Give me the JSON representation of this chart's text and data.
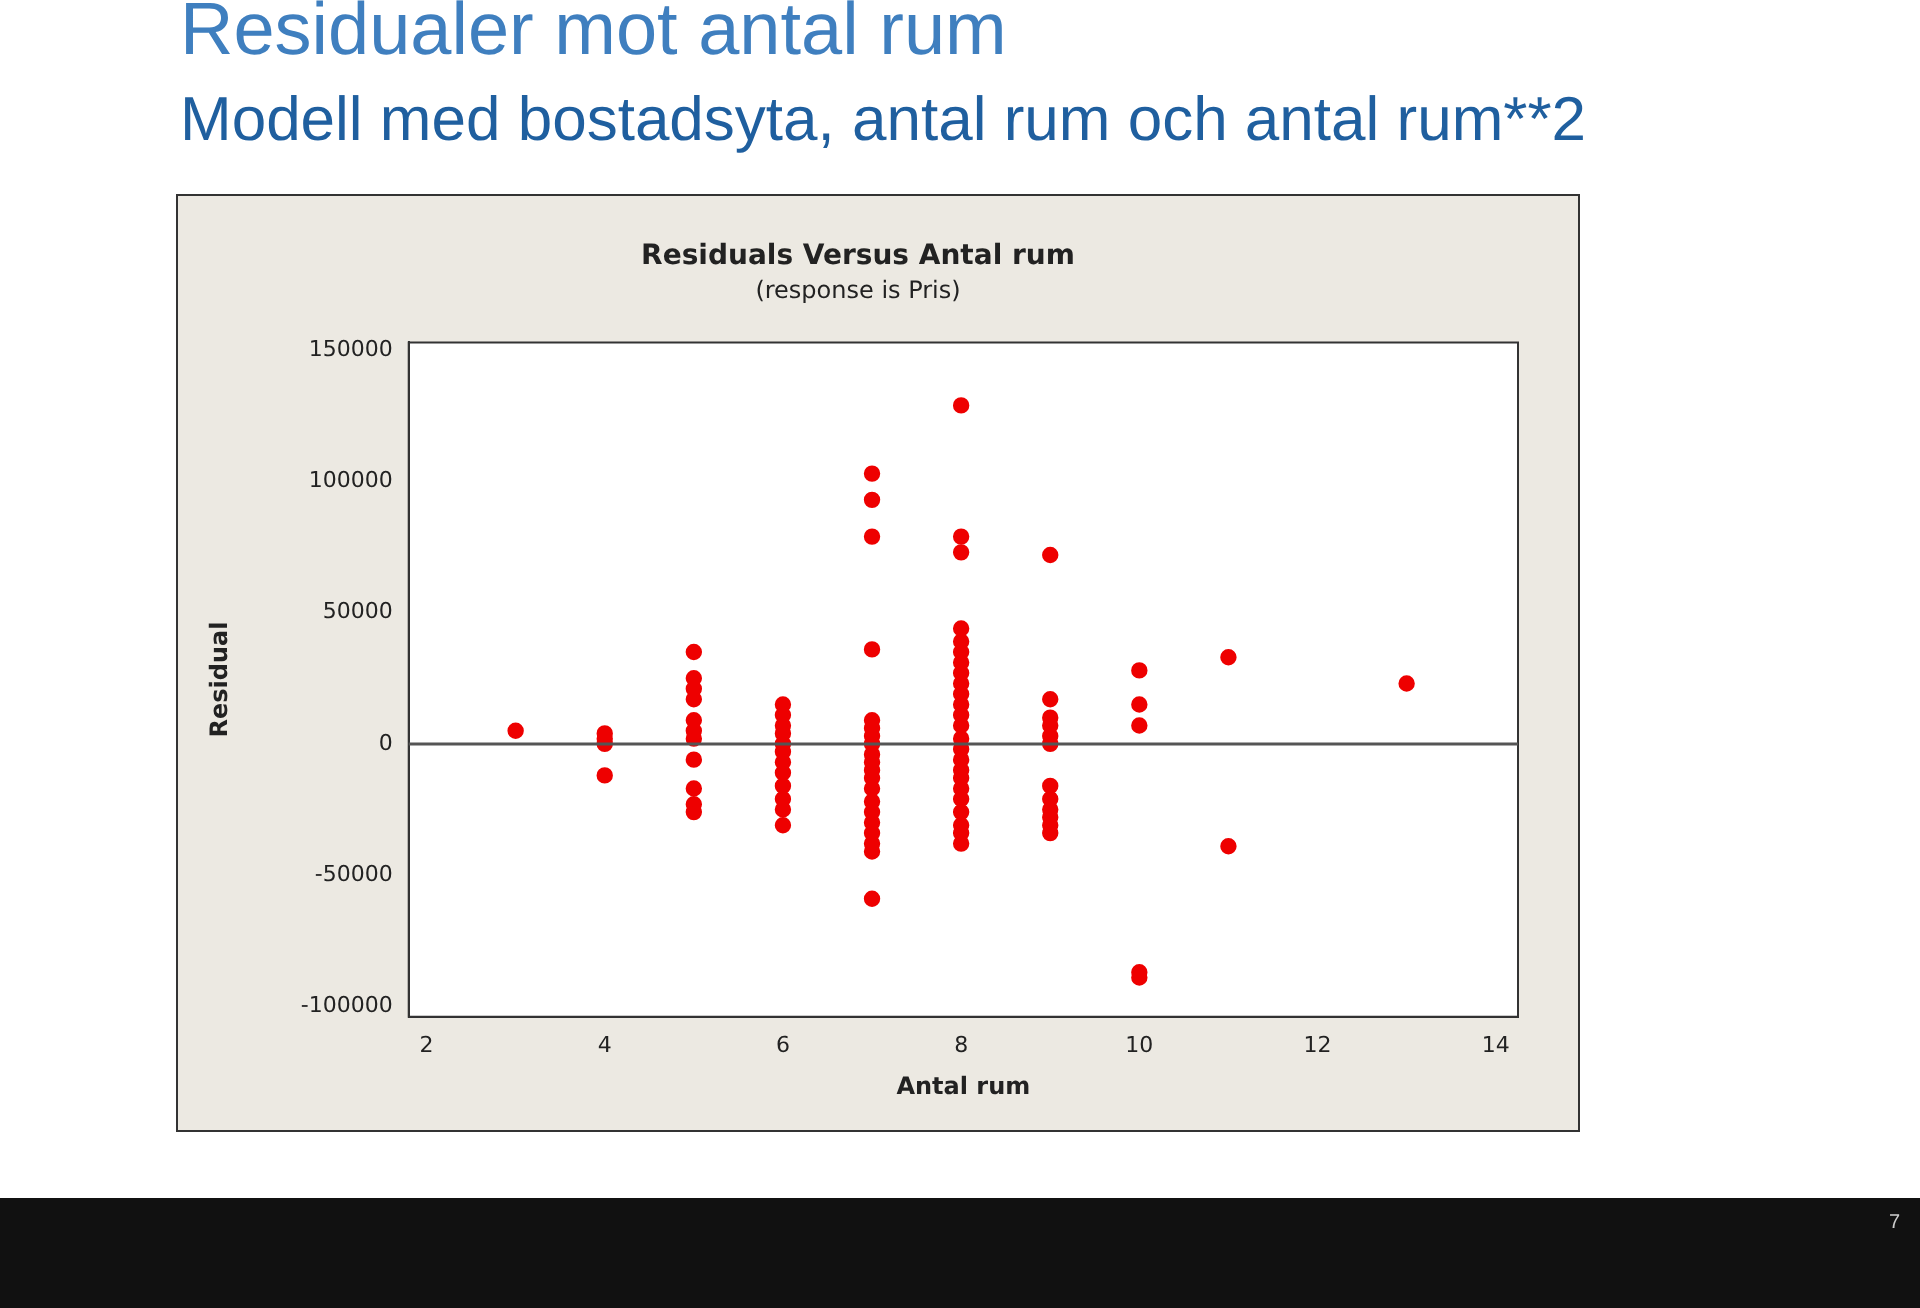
{
  "chart_data": {
    "type": "scatter",
    "title": "Residuals Versus Antal rum",
    "subtitle": "(response is Pris)",
    "xlabel": "Antal rum",
    "ylabel": "Residual",
    "annotations": [
      "Residualer mot antal rum",
      "Modell med bostadsyta, antal rum och antal rum**2",
      "7"
    ],
    "series": [
      {
        "color": "#ee0000",
        "x": [
          3,
          4,
          4,
          4,
          4,
          5,
          5,
          5,
          5,
          5,
          5,
          5,
          5,
          5,
          5,
          5,
          6,
          6,
          6,
          6,
          6,
          6,
          6,
          6,
          6,
          6,
          6,
          6,
          7,
          7,
          7,
          7,
          7,
          7,
          7,
          7,
          7,
          7,
          7,
          7,
          7,
          7,
          7,
          7,
          7,
          7,
          7,
          7,
          8,
          8,
          8,
          8,
          8,
          8,
          8,
          8,
          8,
          8,
          8,
          8,
          8,
          8,
          8,
          8,
          8,
          8,
          8,
          8,
          8,
          8,
          8,
          8,
          9,
          9,
          9,
          9,
          9,
          9,
          9,
          9,
          9,
          9,
          9,
          9,
          10,
          10,
          10,
          10,
          10,
          11,
          11,
          13
        ],
        "values": [
          5000,
          4000,
          2000,
          0,
          -12000,
          35000,
          25000,
          21000,
          17000,
          9000,
          5000,
          2000,
          -6000,
          -17000,
          -23000,
          -26000,
          15000,
          11000,
          7000,
          4000,
          0,
          -3000,
          -7000,
          -11000,
          -16000,
          -21000,
          -25000,
          -31000,
          103000,
          93000,
          79000,
          36000,
          9000,
          6000,
          3000,
          0,
          -4000,
          -7000,
          -10000,
          -13000,
          -17000,
          -22000,
          -26000,
          -30000,
          -34000,
          -38000,
          -41000,
          -59000,
          129000,
          79000,
          73000,
          44000,
          39000,
          35000,
          31000,
          27000,
          23000,
          19000,
          15000,
          11000,
          7000,
          2000,
          -2000,
          -6000,
          -10000,
          -13000,
          -17000,
          -21000,
          -26000,
          -31000,
          -34000,
          -38000,
          72000,
          17000,
          10000,
          7000,
          3000,
          0,
          -16000,
          -21000,
          -25000,
          -28000,
          -31000,
          -34000,
          28000,
          15000,
          7000,
          -87000,
          -89000,
          33000,
          -39000,
          23000
        ]
      }
    ],
    "xlim": [
      1.8,
      14.25
    ],
    "xticks": [
      2,
      4,
      6,
      8,
      10,
      12,
      14
    ],
    "ylim": [
      -104000,
      153000
    ],
    "yticks": [
      -100000,
      -50000,
      0,
      50000,
      100000,
      150000
    ],
    "ref_lines": [
      {
        "axis": "y",
        "value": 0,
        "color": "#555555"
      }
    ],
    "marker": "circle",
    "grid": false,
    "legend": false
  }
}
